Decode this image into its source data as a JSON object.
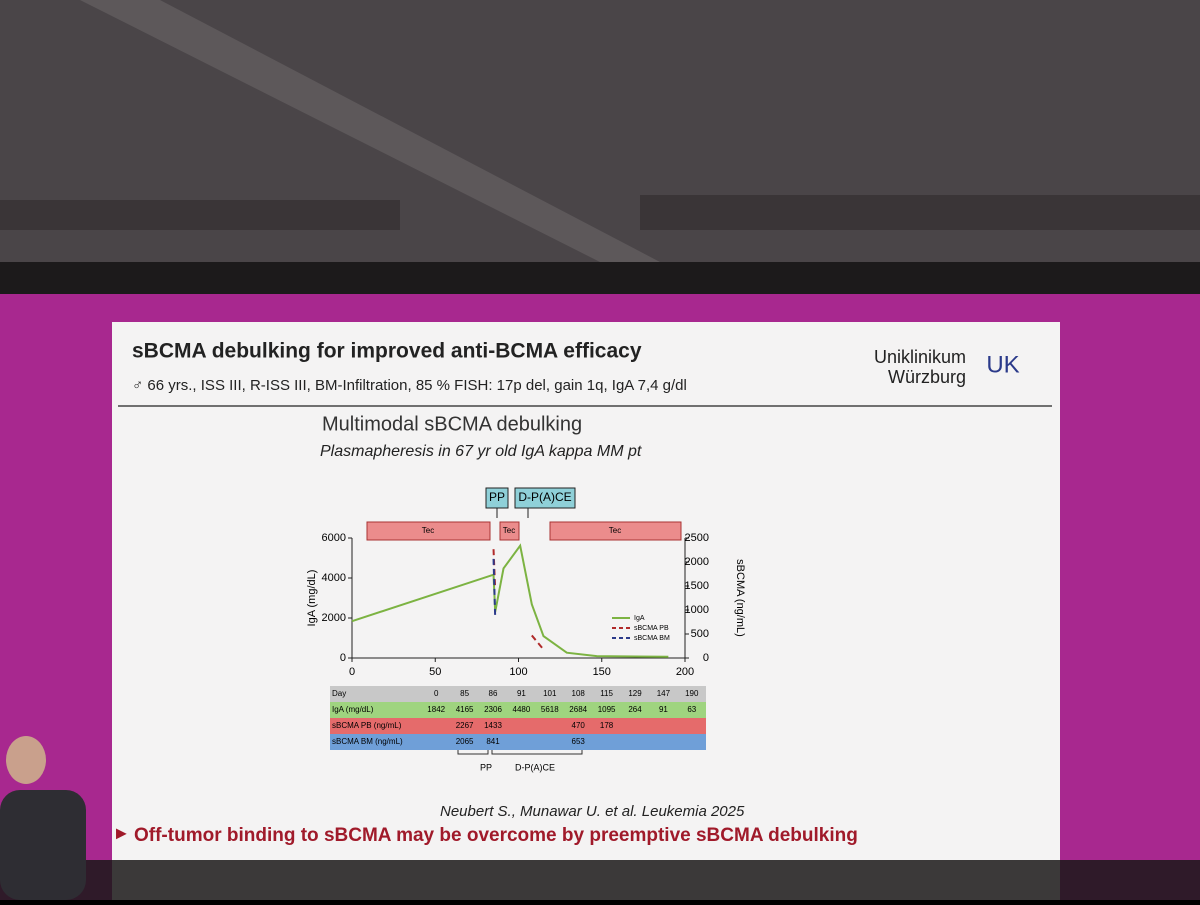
{
  "slide": {
    "title": "sBCMA debulking for improved anti-BCMA efficacy",
    "subtitle": "♂ 66 yrs., ISS III, R-ISS III, BM-Infiltration, 85 % FISH: 17p del, gain 1q, IgA 7,4 g/dl",
    "logo": {
      "line1": "Uniklinikum",
      "line2": "Würzburg",
      "mark": "UK"
    },
    "heading": "Multimodal sBCMA debulking",
    "subheading": "Plasmapheresis in 67 yr old IgA kappa MM pt",
    "citation": "Neubert S., Munawar U. et al. Leukemia 2025",
    "bullet": "Off-tumor binding to sBCMA may be overcome by preemptive sBCMA debulking"
  },
  "chart": {
    "type": "line",
    "treatments": [
      "Tec",
      "Tec",
      "Tec"
    ],
    "events": [
      "PP",
      "D-P(A)CE"
    ],
    "y_label": "IgA (mg/dL)",
    "y2_label": "sBCMA (ng/mL)",
    "xlim": [
      0,
      200
    ],
    "xticks": [
      0,
      50,
      100,
      150,
      200
    ],
    "ylim": [
      0,
      6000
    ],
    "yticks": [
      0,
      2000,
      4000,
      6000
    ],
    "y2lim": [
      0,
      2500
    ],
    "y2ticks": [
      0,
      500,
      1000,
      1500,
      2000,
      2500
    ],
    "x_header": "Day",
    "x": [
      0,
      85,
      86,
      91,
      101,
      108,
      115,
      129,
      147,
      190
    ],
    "series": [
      {
        "name": "IgA",
        "row_label": "IgA (mg/dL)",
        "color": "#7cb342",
        "row_color": "#9fd47f",
        "dashed": false,
        "values": [
          1842,
          4165,
          2306,
          4480,
          5618,
          2684,
          1095,
          264,
          91,
          63
        ]
      },
      {
        "name": "sBCMA PB",
        "row_label": "sBCMA PB (ng/mL)",
        "color": "#b02a2a",
        "row_color": "#e56b6b",
        "dashed": true,
        "axis": "y2",
        "values": [
          null,
          2267,
          1433,
          null,
          null,
          470,
          178,
          null,
          null,
          null
        ]
      },
      {
        "name": "sBCMA BM",
        "row_label": "sBCMA BM (ng/mL)",
        "color": "#2b3a8a",
        "row_color": "#6f9fd8",
        "dashed": true,
        "axis": "y2",
        "values": [
          null,
          2065,
          841,
          null,
          null,
          653,
          null,
          null,
          null,
          null
        ]
      }
    ],
    "brackets": [
      "PP",
      "D-P(A)CE"
    ]
  }
}
